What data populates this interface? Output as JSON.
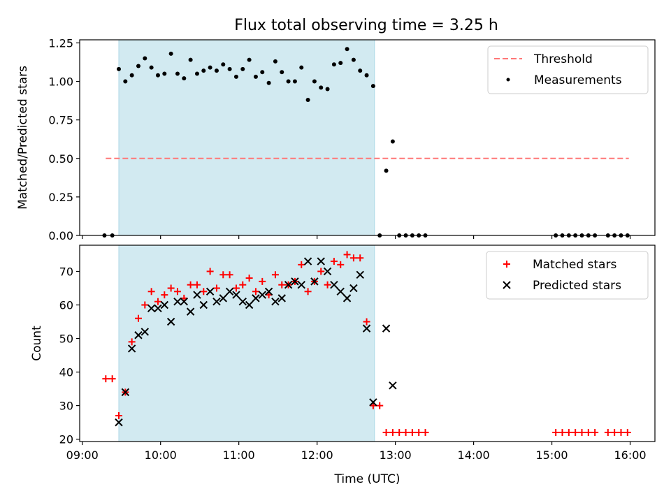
{
  "title": "Flux total observing time = 3.25 h",
  "colors": {
    "shade": "#add8e6",
    "threshold": "#ff7777",
    "measurement": "#000000",
    "matched": "#ff0000",
    "predicted": "#000000"
  },
  "chart_data": [
    {
      "type": "scatter",
      "ylabel": "Matched/Predicted stars",
      "ylim": [
        0,
        1.27
      ],
      "yticks": [
        0,
        0.25,
        0.5,
        0.75,
        1.0,
        1.25
      ],
      "ytick_labels": [
        "0.00",
        "0.25",
        "0.50",
        "0.75",
        "1.00",
        "1.25"
      ],
      "xticks": [
        "09:00",
        "10:00",
        "11:00",
        "12:00",
        "13:00",
        "14:00",
        "15:00",
        "16:00"
      ],
      "xlim": [
        "08:58",
        "16:19"
      ],
      "legend": {
        "position": "top-right",
        "entries": [
          "Threshold",
          "Measurements"
        ]
      },
      "shaded_span": [
        "09:28",
        "12:44"
      ],
      "threshold": {
        "name": "Threshold",
        "y": 0.5,
        "x_range": [
          "09:18",
          "15:59"
        ],
        "style": "dashed"
      },
      "series": [
        {
          "name": "Measurements",
          "marker": "dot",
          "points": [
            [
              "09:17",
              0.0
            ],
            [
              "09:23",
              0.0
            ],
            [
              "09:28",
              1.08
            ],
            [
              "09:33",
              1.0
            ],
            [
              "09:38",
              1.04
            ],
            [
              "09:43",
              1.1
            ],
            [
              "09:48",
              1.15
            ],
            [
              "09:53",
              1.09
            ],
            [
              "09:58",
              1.04
            ],
            [
              "10:03",
              1.05
            ],
            [
              "10:08",
              1.18
            ],
            [
              "10:13",
              1.05
            ],
            [
              "10:18",
              1.02
            ],
            [
              "10:23",
              1.14
            ],
            [
              "10:28",
              1.05
            ],
            [
              "10:33",
              1.07
            ],
            [
              "10:38",
              1.09
            ],
            [
              "10:43",
              1.07
            ],
            [
              "10:48",
              1.11
            ],
            [
              "10:53",
              1.08
            ],
            [
              "10:58",
              1.03
            ],
            [
              "11:03",
              1.08
            ],
            [
              "11:08",
              1.14
            ],
            [
              "11:13",
              1.03
            ],
            [
              "11:18",
              1.06
            ],
            [
              "11:23",
              0.99
            ],
            [
              "11:28",
              1.13
            ],
            [
              "11:33",
              1.06
            ],
            [
              "11:38",
              1.0
            ],
            [
              "11:43",
              1.0
            ],
            [
              "11:48",
              1.09
            ],
            [
              "11:53",
              0.88
            ],
            [
              "11:58",
              1.0
            ],
            [
              "12:03",
              0.96
            ],
            [
              "12:08",
              0.95
            ],
            [
              "12:13",
              1.11
            ],
            [
              "12:18",
              1.12
            ],
            [
              "12:23",
              1.21
            ],
            [
              "12:28",
              1.14
            ],
            [
              "12:33",
              1.07
            ],
            [
              "12:38",
              1.04
            ],
            [
              "12:43",
              0.97
            ],
            [
              "12:48",
              0.0
            ],
            [
              "12:53",
              0.42
            ],
            [
              "12:58",
              0.61
            ],
            [
              "13:03",
              0.0
            ],
            [
              "13:08",
              0.0
            ],
            [
              "13:13",
              0.0
            ],
            [
              "13:18",
              0.0
            ],
            [
              "13:23",
              0.0
            ],
            [
              "15:03",
              0.0
            ],
            [
              "15:08",
              0.0
            ],
            [
              "15:13",
              0.0
            ],
            [
              "15:18",
              0.0
            ],
            [
              "15:23",
              0.0
            ],
            [
              "15:28",
              0.0
            ],
            [
              "15:33",
              0.0
            ],
            [
              "15:43",
              0.0
            ],
            [
              "15:48",
              0.0
            ],
            [
              "15:53",
              0.0
            ],
            [
              "15:58",
              0.0
            ]
          ]
        }
      ]
    },
    {
      "type": "scatter",
      "xlabel": "Time (UTC)",
      "ylabel": "Count",
      "ylim": [
        19.3,
        77.8
      ],
      "yticks": [
        20,
        30,
        40,
        50,
        60,
        70
      ],
      "ytick_labels": [
        "20",
        "30",
        "40",
        "50",
        "60",
        "70"
      ],
      "xticks": [
        "09:00",
        "10:00",
        "11:00",
        "12:00",
        "13:00",
        "14:00",
        "15:00",
        "16:00"
      ],
      "xlim": [
        "08:58",
        "16:19"
      ],
      "legend": {
        "position": "top-right",
        "entries": [
          "Matched stars",
          "Predicted stars"
        ]
      },
      "shaded_span": [
        "09:28",
        "12:44"
      ],
      "series": [
        {
          "name": "Matched stars",
          "marker": "plus",
          "points": [
            [
              "09:18",
              38
            ],
            [
              "09:23",
              38
            ],
            [
              "09:28",
              27
            ],
            [
              "09:33",
              34
            ],
            [
              "09:38",
              49
            ],
            [
              "09:43",
              56
            ],
            [
              "09:48",
              60
            ],
            [
              "09:53",
              64
            ],
            [
              "09:58",
              61
            ],
            [
              "10:03",
              63
            ],
            [
              "10:08",
              65
            ],
            [
              "10:13",
              64
            ],
            [
              "10:18",
              62
            ],
            [
              "10:23",
              66
            ],
            [
              "10:28",
              66
            ],
            [
              "10:33",
              64
            ],
            [
              "10:38",
              70
            ],
            [
              "10:43",
              65
            ],
            [
              "10:48",
              69
            ],
            [
              "10:53",
              69
            ],
            [
              "10:58",
              65
            ],
            [
              "11:03",
              66
            ],
            [
              "11:08",
              68
            ],
            [
              "11:13",
              64
            ],
            [
              "11:18",
              67
            ],
            [
              "11:23",
              63
            ],
            [
              "11:28",
              69
            ],
            [
              "11:33",
              66
            ],
            [
              "11:38",
              66
            ],
            [
              "11:43",
              67
            ],
            [
              "11:48",
              72
            ],
            [
              "11:53",
              64
            ],
            [
              "11:58",
              67
            ],
            [
              "12:03",
              70
            ],
            [
              "12:08",
              66
            ],
            [
              "12:13",
              73
            ],
            [
              "12:18",
              72
            ],
            [
              "12:23",
              75
            ],
            [
              "12:28",
              74
            ],
            [
              "12:33",
              74
            ],
            [
              "12:38",
              55
            ],
            [
              "12:43",
              30
            ],
            [
              "12:48",
              30
            ],
            [
              "12:53",
              22
            ],
            [
              "12:58",
              22
            ],
            [
              "13:03",
              22
            ],
            [
              "13:08",
              22
            ],
            [
              "13:13",
              22
            ],
            [
              "13:18",
              22
            ],
            [
              "13:23",
              22
            ],
            [
              "15:03",
              22
            ],
            [
              "15:08",
              22
            ],
            [
              "15:13",
              22
            ],
            [
              "15:18",
              22
            ],
            [
              "15:23",
              22
            ],
            [
              "15:28",
              22
            ],
            [
              "15:33",
              22
            ],
            [
              "15:43",
              22
            ],
            [
              "15:48",
              22
            ],
            [
              "15:53",
              22
            ],
            [
              "15:58",
              22
            ]
          ]
        },
        {
          "name": "Predicted stars",
          "marker": "x",
          "points": [
            [
              "09:28",
              25
            ],
            [
              "09:33",
              34
            ],
            [
              "09:38",
              47
            ],
            [
              "09:43",
              51
            ],
            [
              "09:48",
              52
            ],
            [
              "09:53",
              59
            ],
            [
              "09:58",
              59
            ],
            [
              "10:03",
              60
            ],
            [
              "10:08",
              55
            ],
            [
              "10:13",
              61
            ],
            [
              "10:18",
              61
            ],
            [
              "10:23",
              58
            ],
            [
              "10:28",
              63
            ],
            [
              "10:33",
              60
            ],
            [
              "10:38",
              64
            ],
            [
              "10:43",
              61
            ],
            [
              "10:48",
              62
            ],
            [
              "10:53",
              64
            ],
            [
              "10:58",
              63
            ],
            [
              "11:03",
              61
            ],
            [
              "11:08",
              60
            ],
            [
              "11:13",
              62
            ],
            [
              "11:18",
              63
            ],
            [
              "11:23",
              64
            ],
            [
              "11:28",
              61
            ],
            [
              "11:33",
              62
            ],
            [
              "11:38",
              66
            ],
            [
              "11:43",
              67
            ],
            [
              "11:48",
              66
            ],
            [
              "11:53",
              73
            ],
            [
              "11:58",
              67
            ],
            [
              "12:03",
              73
            ],
            [
              "12:08",
              70
            ],
            [
              "12:13",
              66
            ],
            [
              "12:18",
              64
            ],
            [
              "12:23",
              62
            ],
            [
              "12:28",
              65
            ],
            [
              "12:33",
              69
            ],
            [
              "12:38",
              53
            ],
            [
              "12:43",
              31
            ],
            [
              "12:53",
              53
            ],
            [
              "12:58",
              36
            ]
          ]
        }
      ]
    }
  ]
}
